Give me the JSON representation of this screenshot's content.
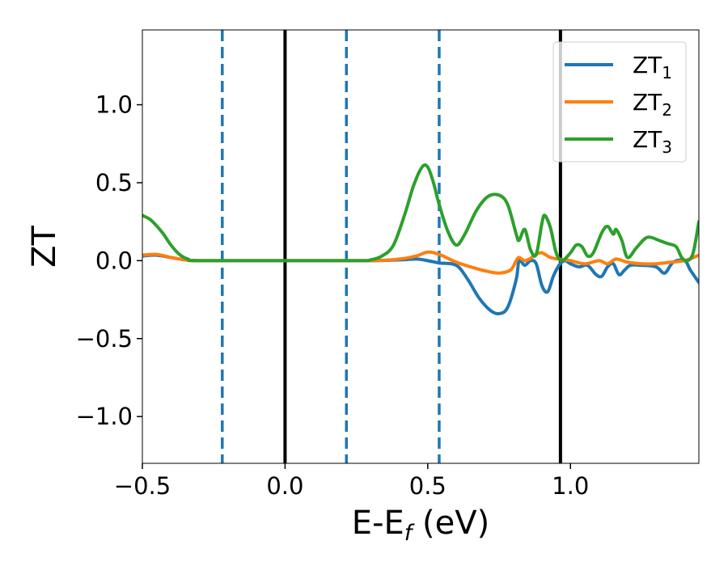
{
  "chart_data": {
    "type": "line",
    "xlabel": "E-E",
    "xlabel_sub": "f",
    "xlabel_unit": " (eV)",
    "ylabel": "ZT",
    "xlim": [
      -0.5,
      1.45
    ],
    "ylim": [
      -1.3,
      1.48
    ],
    "x_ticks": [
      -0.5,
      0.0,
      0.5,
      1.0
    ],
    "x_tick_labels": [
      "−0.5",
      "0.0",
      "0.5",
      "1.0"
    ],
    "y_ticks": [
      -1.0,
      -0.5,
      0.0,
      0.5,
      1.0
    ],
    "y_tick_labels": [
      "−1.0",
      "−0.5",
      "0.0",
      "0.5",
      "1.0"
    ],
    "grid": false,
    "legend_position": "top-right",
    "vertical_lines": [
      {
        "x": -0.22,
        "style": "dashed",
        "color": "#1f77b4"
      },
      {
        "x": 0.0,
        "style": "solid",
        "color": "#000000"
      },
      {
        "x": 0.215,
        "style": "dashed",
        "color": "#1f77b4"
      },
      {
        "x": 0.54,
        "style": "dashed",
        "color": "#1f77b4"
      },
      {
        "x": 0.965,
        "style": "solid",
        "color": "#000000"
      }
    ],
    "series": [
      {
        "name": "ZT",
        "name_sub": "1",
        "color": "#1f77b4",
        "points": [
          [
            -0.5,
            0.03
          ],
          [
            -0.45,
            0.035
          ],
          [
            -0.4,
            0.02
          ],
          [
            -0.35,
            0.005
          ],
          [
            -0.3,
            0.0
          ],
          [
            0.0,
            0.0
          ],
          [
            0.3,
            0.0
          ],
          [
            0.4,
            0.005
          ],
          [
            0.46,
            0.01
          ],
          [
            0.5,
            0.0
          ],
          [
            0.54,
            -0.015
          ],
          [
            0.6,
            -0.03
          ],
          [
            0.64,
            -0.12
          ],
          [
            0.68,
            -0.24
          ],
          [
            0.72,
            -0.32
          ],
          [
            0.75,
            -0.34
          ],
          [
            0.78,
            -0.3
          ],
          [
            0.81,
            -0.12
          ],
          [
            0.82,
            0.0
          ],
          [
            0.84,
            -0.03
          ],
          [
            0.86,
            0.0
          ],
          [
            0.88,
            -0.02
          ],
          [
            0.9,
            -0.16
          ],
          [
            0.92,
            -0.2
          ],
          [
            0.94,
            -0.1
          ],
          [
            0.96,
            -0.03
          ],
          [
            0.98,
            0.0
          ],
          [
            1.0,
            -0.02
          ],
          [
            1.03,
            -0.04
          ],
          [
            1.06,
            -0.03
          ],
          [
            1.09,
            -0.09
          ],
          [
            1.11,
            -0.1
          ],
          [
            1.13,
            -0.04
          ],
          [
            1.15,
            -0.02
          ],
          [
            1.17,
            -0.09
          ],
          [
            1.19,
            -0.06
          ],
          [
            1.21,
            -0.03
          ],
          [
            1.25,
            -0.03
          ],
          [
            1.3,
            -0.04
          ],
          [
            1.33,
            -0.08
          ],
          [
            1.36,
            -0.01
          ],
          [
            1.4,
            0.0
          ],
          [
            1.42,
            -0.06
          ],
          [
            1.45,
            -0.14
          ]
        ]
      },
      {
        "name": "ZT",
        "name_sub": "2",
        "color": "#ff7f0e",
        "points": [
          [
            -0.5,
            0.035
          ],
          [
            -0.45,
            0.04
          ],
          [
            -0.4,
            0.02
          ],
          [
            -0.35,
            0.005
          ],
          [
            -0.3,
            0.0
          ],
          [
            0.0,
            0.0
          ],
          [
            0.3,
            0.0
          ],
          [
            0.4,
            0.01
          ],
          [
            0.46,
            0.03
          ],
          [
            0.5,
            0.055
          ],
          [
            0.54,
            0.04
          ],
          [
            0.6,
            -0.01
          ],
          [
            0.65,
            -0.04
          ],
          [
            0.7,
            -0.065
          ],
          [
            0.75,
            -0.08
          ],
          [
            0.79,
            -0.06
          ],
          [
            0.81,
            0.0
          ],
          [
            0.82,
            0.02
          ],
          [
            0.84,
            0.0
          ],
          [
            0.86,
            0.015
          ],
          [
            0.88,
            0.04
          ],
          [
            0.9,
            0.05
          ],
          [
            0.93,
            0.02
          ],
          [
            0.96,
            0.01
          ],
          [
            1.0,
            0.0
          ],
          [
            1.05,
            -0.02
          ],
          [
            1.1,
            0.0
          ],
          [
            1.13,
            -0.02
          ],
          [
            1.16,
            0.01
          ],
          [
            1.2,
            -0.01
          ],
          [
            1.25,
            -0.02
          ],
          [
            1.3,
            -0.02
          ],
          [
            1.35,
            -0.01
          ],
          [
            1.4,
            0.0
          ],
          [
            1.45,
            0.035
          ]
        ]
      },
      {
        "name": "ZT",
        "name_sub": "3",
        "color": "#2ca02c",
        "points": [
          [
            -0.5,
            0.29
          ],
          [
            -0.47,
            0.26
          ],
          [
            -0.43,
            0.18
          ],
          [
            -0.4,
            0.1
          ],
          [
            -0.37,
            0.04
          ],
          [
            -0.34,
            0.01
          ],
          [
            -0.3,
            0.0
          ],
          [
            0.0,
            0.0
          ],
          [
            0.26,
            0.0
          ],
          [
            0.3,
            0.005
          ],
          [
            0.34,
            0.03
          ],
          [
            0.38,
            0.1
          ],
          [
            0.42,
            0.3
          ],
          [
            0.45,
            0.48
          ],
          [
            0.48,
            0.6
          ],
          [
            0.5,
            0.6
          ],
          [
            0.52,
            0.5
          ],
          [
            0.54,
            0.36
          ],
          [
            0.57,
            0.19
          ],
          [
            0.6,
            0.1
          ],
          [
            0.63,
            0.17
          ],
          [
            0.67,
            0.32
          ],
          [
            0.71,
            0.41
          ],
          [
            0.75,
            0.42
          ],
          [
            0.78,
            0.36
          ],
          [
            0.81,
            0.17
          ],
          [
            0.82,
            0.13
          ],
          [
            0.84,
            0.2
          ],
          [
            0.86,
            0.07
          ],
          [
            0.88,
            0.04
          ],
          [
            0.9,
            0.24
          ],
          [
            0.91,
            0.29
          ],
          [
            0.93,
            0.21
          ],
          [
            0.95,
            0.05
          ],
          [
            0.97,
            0.0
          ],
          [
            1.0,
            0.05
          ],
          [
            1.02,
            0.1
          ],
          [
            1.04,
            0.09
          ],
          [
            1.06,
            0.03
          ],
          [
            1.08,
            0.05
          ],
          [
            1.11,
            0.18
          ],
          [
            1.13,
            0.22
          ],
          [
            1.15,
            0.17
          ],
          [
            1.16,
            0.2
          ],
          [
            1.18,
            0.13
          ],
          [
            1.2,
            0.02
          ],
          [
            1.23,
            0.08
          ],
          [
            1.26,
            0.14
          ],
          [
            1.28,
            0.15
          ],
          [
            1.31,
            0.13
          ],
          [
            1.34,
            0.11
          ],
          [
            1.37,
            0.09
          ],
          [
            1.39,
            0.02
          ],
          [
            1.41,
            0.0
          ],
          [
            1.43,
            0.05
          ],
          [
            1.45,
            0.25
          ]
        ]
      }
    ]
  }
}
